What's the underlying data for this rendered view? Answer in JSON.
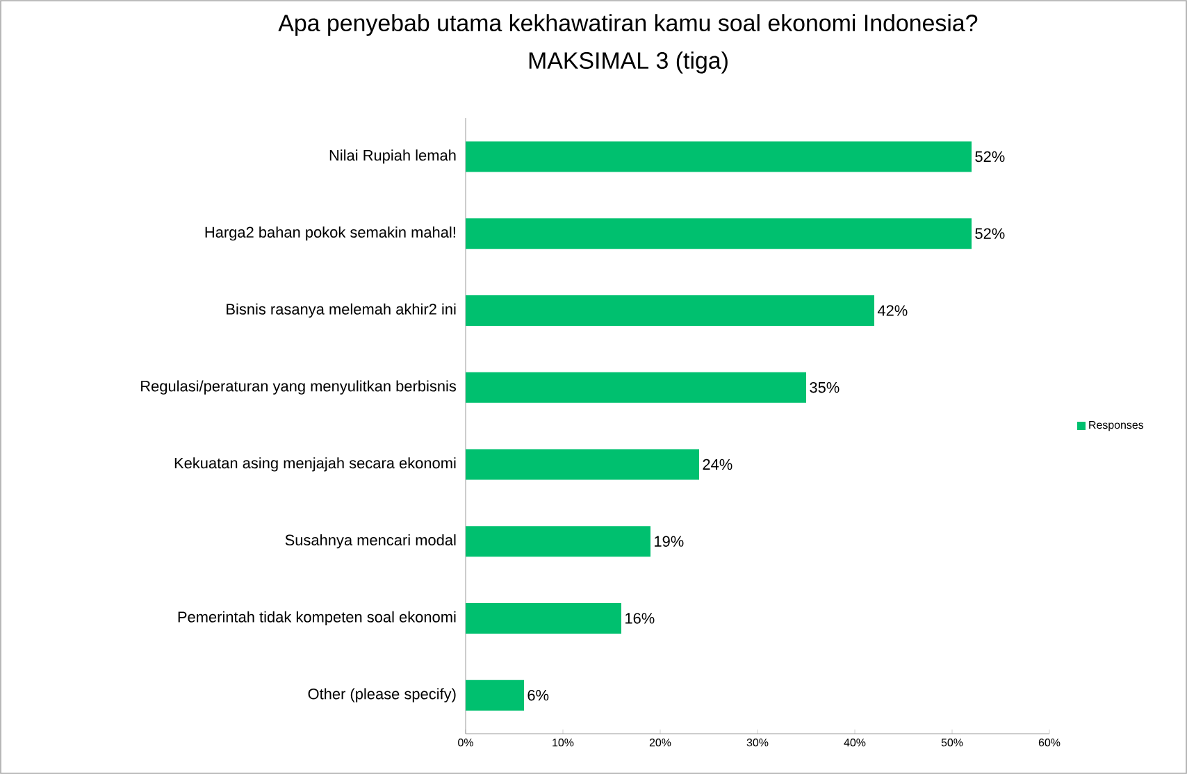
{
  "chart_data": {
    "type": "bar",
    "orientation": "horizontal",
    "title": "Apa penyebab utama kekhawatiran kamu soal ekonomi Indonesia?",
    "subtitle": "MAKSIMAL 3 (tiga)",
    "categories": [
      "Nilai Rupiah lemah",
      "Harga2 bahan pokok semakin mahal!",
      "Bisnis rasanya melemah akhir2 ini",
      "Regulasi/peraturan yang menyulitkan berbisnis",
      "Kekuatan asing menjajah secara ekonomi",
      "Susahnya mencari modal",
      "Pemerintah tidak kompeten soal ekonomi",
      "Other (please specify)"
    ],
    "series": [
      {
        "name": "Responses",
        "color": "#00c06f",
        "values": [
          52,
          52,
          42,
          35,
          24,
          19,
          16,
          6
        ],
        "value_labels": [
          "52%",
          "52%",
          "42%",
          "35%",
          "24%",
          "19%",
          "16%",
          "6%"
        ]
      }
    ],
    "xlim": [
      0,
      60
    ],
    "xticks": [
      {
        "value": 0,
        "label": "0%"
      },
      {
        "value": 10,
        "label": "10%"
      },
      {
        "value": 20,
        "label": "20%"
      },
      {
        "value": 30,
        "label": "30%"
      },
      {
        "value": 40,
        "label": "40%"
      },
      {
        "value": 50,
        "label": "50%"
      },
      {
        "value": 60,
        "label": "60%"
      }
    ],
    "legend": "right"
  }
}
